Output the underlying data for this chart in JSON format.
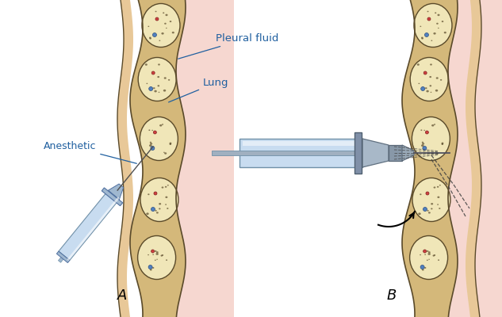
{
  "bg_color": "#ffffff",
  "label_A": "A",
  "label_B": "B",
  "label_anesthetic": "Anesthetic",
  "label_pleural_fluid": "Pleural fluid",
  "label_lung": "Lung",
  "rib_fill": "#F0E6B8",
  "rib_outline": "#5A4A2A",
  "connective_fill": "#D4B87A",
  "skin_fill": "#E8C898",
  "pink_bg": "#F5D0C8",
  "syringe_light": "#C8DCF0",
  "syringe_mid": "#A0B8D0",
  "syringe_dark": "#7090A8",
  "needle_col": "#606060",
  "text_color": "#000000",
  "label_color": "#2060A0",
  "dashed_col": "#404040"
}
